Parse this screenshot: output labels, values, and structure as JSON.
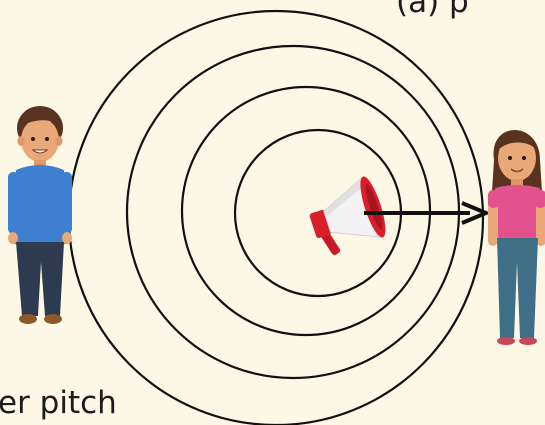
{
  "captions": {
    "top": "(a) p",
    "bottom": "er pitch"
  },
  "colors": {
    "background": "#fdf8e6",
    "wave_line": "#111111",
    "arrow": "#111111",
    "megaphone_red": "#d91f2a",
    "megaphone_white": "#f2f2f2",
    "boy_shirt": "#3f7fd0",
    "boy_pants": "#2e3a4f",
    "girl_shirt": "#e3528f",
    "girl_pants": "#3f6f86",
    "skin": "#e8a878",
    "hair": "#5a3320"
  },
  "icons": [
    "megaphone-icon",
    "boy-figure",
    "girl-figure",
    "arrow-icon"
  ]
}
